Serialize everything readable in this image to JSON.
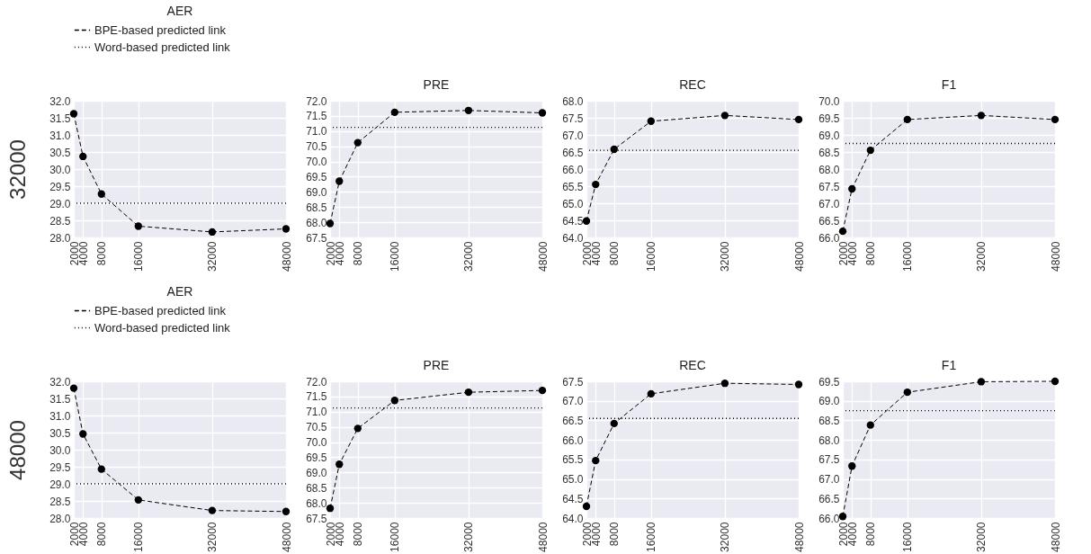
{
  "chart_data": [
    {
      "type": "line",
      "title": "AER",
      "ylabel": "32000",
      "x": [
        2000,
        4000,
        8000,
        16000,
        32000,
        48000
      ],
      "xlim": [
        2000,
        48000
      ],
      "xticks": [
        2000,
        4000,
        8000,
        16000,
        32000,
        48000
      ],
      "ylim": [
        28,
        32
      ],
      "yticks": [
        {
          "value": 28,
          "label": "28.0"
        },
        28.5,
        {
          "value": 29,
          "label": "29.0"
        },
        29.5,
        {
          "value": 30,
          "label": "30.0"
        },
        30.5,
        {
          "value": 31,
          "label": "31.0"
        },
        31.5,
        {
          "value": 32,
          "label": "32.0"
        }
      ],
      "grid": true,
      "legend": "top left",
      "marker": "circle",
      "line_style": "dashed",
      "series": [
        {
          "name": "BPE-based predicted link",
          "color": "#000000",
          "values": [
            31.62,
            30.37,
            29.27,
            28.33,
            28.16,
            28.25
          ]
        }
      ],
      "ref_lines": [
        {
          "axis": "y",
          "value": 29.0,
          "label": "Word-based predicted link",
          "line_style": "dotted"
        }
      ]
    },
    {
      "type": "line",
      "title": "PRE",
      "x": [
        2000,
        4000,
        8000,
        16000,
        32000,
        48000
      ],
      "xlim": [
        2000,
        48000
      ],
      "xticks": [
        2000,
        4000,
        8000,
        16000,
        32000,
        48000
      ],
      "ylim": [
        67.5,
        72
      ],
      "yticks": [
        67.5,
        {
          "value": 68,
          "label": "68.0"
        },
        68.5,
        {
          "value": 69,
          "label": "69.0"
        },
        69.5,
        {
          "value": 70,
          "label": "70.0"
        },
        70.5,
        {
          "value": 71,
          "label": "71.0"
        },
        71.5,
        {
          "value": 72,
          "label": "72.0"
        }
      ],
      "grid": true,
      "marker": "circle",
      "line_style": "dashed",
      "series": [
        {
          "color": "#000000",
          "values": [
            67.96,
            69.35,
            70.62,
            71.62,
            71.68,
            71.6
          ]
        }
      ],
      "ref_lines": [
        {
          "axis": "y",
          "value": 71.12,
          "line_style": "dotted"
        }
      ]
    },
    {
      "type": "line",
      "title": "REC",
      "x": [
        2000,
        4000,
        8000,
        16000,
        32000,
        48000
      ],
      "xlim": [
        2000,
        48000
      ],
      "xticks": [
        2000,
        4000,
        8000,
        16000,
        32000,
        48000
      ],
      "ylim": [
        64,
        68
      ],
      "yticks": [
        {
          "value": 64,
          "label": "64.0"
        },
        64.5,
        {
          "value": 65,
          "label": "65.0"
        },
        65.5,
        {
          "value": 66,
          "label": "66.0"
        },
        66.5,
        {
          "value": 67,
          "label": "67.0"
        },
        67.5,
        {
          "value": 68,
          "label": "68.0"
        }
      ],
      "grid": true,
      "marker": "circle",
      "line_style": "dashed",
      "series": [
        {
          "color": "#000000",
          "values": [
            64.48,
            65.55,
            66.58,
            67.4,
            67.57,
            67.45
          ]
        }
      ],
      "ref_lines": [
        {
          "axis": "y",
          "value": 66.55,
          "line_style": "dotted"
        }
      ]
    },
    {
      "type": "line",
      "title": "F1",
      "x": [
        2000,
        4000,
        8000,
        16000,
        32000,
        48000
      ],
      "xlim": [
        2000,
        48000
      ],
      "xticks": [
        2000,
        4000,
        8000,
        16000,
        32000,
        48000
      ],
      "ylim": [
        66,
        70
      ],
      "yticks": [
        {
          "value": 66,
          "label": "66.0"
        },
        66.5,
        {
          "value": 67,
          "label": "67.0"
        },
        67.5,
        {
          "value": 68,
          "label": "68.0"
        },
        68.5,
        {
          "value": 69,
          "label": "69.0"
        },
        69.5,
        {
          "value": 70,
          "label": "70.0"
        }
      ],
      "grid": true,
      "marker": "circle",
      "line_style": "dashed",
      "series": [
        {
          "color": "#000000",
          "values": [
            66.18,
            67.42,
            68.55,
            69.45,
            69.57,
            69.45
          ]
        }
      ],
      "ref_lines": [
        {
          "axis": "y",
          "value": 68.75,
          "line_style": "dotted"
        }
      ]
    },
    {
      "type": "line",
      "title": "AER",
      "ylabel": "48000",
      "x": [
        2000,
        4000,
        8000,
        16000,
        32000,
        48000
      ],
      "xlim": [
        2000,
        48000
      ],
      "xticks": [
        2000,
        4000,
        8000,
        16000,
        32000,
        48000
      ],
      "ylim": [
        28,
        32
      ],
      "yticks": [
        {
          "value": 28,
          "label": "28.0"
        },
        28.5,
        {
          "value": 29,
          "label": "29.0"
        },
        29.5,
        {
          "value": 30,
          "label": "30.0"
        },
        30.5,
        {
          "value": 31,
          "label": "31.0"
        },
        31.5,
        {
          "value": 32,
          "label": "32.0"
        }
      ],
      "grid": true,
      "legend": "top left",
      "marker": "circle",
      "line_style": "dashed",
      "series": [
        {
          "name": "BPE-based predicted link",
          "color": "#000000",
          "values": [
            31.8,
            30.46,
            29.43,
            28.53,
            28.22,
            28.19
          ]
        }
      ],
      "ref_lines": [
        {
          "axis": "y",
          "value": 29.0,
          "label": "Word-based predicted link",
          "line_style": "dotted"
        }
      ]
    },
    {
      "type": "line",
      "title": "PRE",
      "x": [
        2000,
        4000,
        8000,
        16000,
        32000,
        48000
      ],
      "xlim": [
        2000,
        48000
      ],
      "xticks": [
        2000,
        4000,
        8000,
        16000,
        32000,
        48000
      ],
      "ylim": [
        67.5,
        72
      ],
      "yticks": [
        67.5,
        {
          "value": 68,
          "label": "68.0"
        },
        68.5,
        {
          "value": 69,
          "label": "69.0"
        },
        69.5,
        {
          "value": 70,
          "label": "70.0"
        },
        70.5,
        {
          "value": 71,
          "label": "71.0"
        },
        71.5,
        {
          "value": 72,
          "label": "72.0"
        }
      ],
      "grid": true,
      "marker": "circle",
      "line_style": "dashed",
      "series": [
        {
          "color": "#000000",
          "values": [
            67.82,
            69.27,
            70.45,
            71.37,
            71.64,
            71.7
          ]
        }
      ],
      "ref_lines": [
        {
          "axis": "y",
          "value": 71.12,
          "line_style": "dotted"
        }
      ]
    },
    {
      "type": "line",
      "title": "REC",
      "x": [
        2000,
        4000,
        8000,
        16000,
        32000,
        48000
      ],
      "xlim": [
        2000,
        48000
      ],
      "xticks": [
        2000,
        4000,
        8000,
        16000,
        32000,
        48000
      ],
      "ylim": [
        64,
        67.5
      ],
      "yticks": [
        {
          "value": 64,
          "label": "64.0"
        },
        64.5,
        {
          "value": 65,
          "label": "65.0"
        },
        65.5,
        {
          "value": 66,
          "label": "66.0"
        },
        66.5,
        {
          "value": 67,
          "label": "67.0"
        },
        67.5
      ],
      "grid": true,
      "marker": "circle",
      "line_style": "dashed",
      "series": [
        {
          "color": "#000000",
          "values": [
            64.3,
            65.47,
            66.42,
            67.18,
            67.45,
            67.42
          ]
        }
      ],
      "ref_lines": [
        {
          "axis": "y",
          "value": 66.55,
          "line_style": "dotted"
        }
      ]
    },
    {
      "type": "line",
      "title": "F1",
      "x": [
        2000,
        4000,
        8000,
        16000,
        32000,
        48000
      ],
      "xlim": [
        2000,
        48000
      ],
      "xticks": [
        2000,
        4000,
        8000,
        16000,
        32000,
        48000
      ],
      "ylim": [
        66,
        69.5
      ],
      "yticks": [
        {
          "value": 66,
          "label": "66.0"
        },
        66.5,
        {
          "value": 67,
          "label": "67.0"
        },
        67.5,
        {
          "value": 68,
          "label": "68.0"
        },
        68.5,
        {
          "value": 69,
          "label": "69.0"
        },
        69.5
      ],
      "grid": true,
      "marker": "circle",
      "line_style": "dashed",
      "series": [
        {
          "color": "#000000",
          "values": [
            66.04,
            67.33,
            68.38,
            69.22,
            69.49,
            69.5
          ]
        }
      ],
      "ref_lines": [
        {
          "axis": "y",
          "value": 68.75,
          "line_style": "dotted"
        }
      ]
    }
  ]
}
